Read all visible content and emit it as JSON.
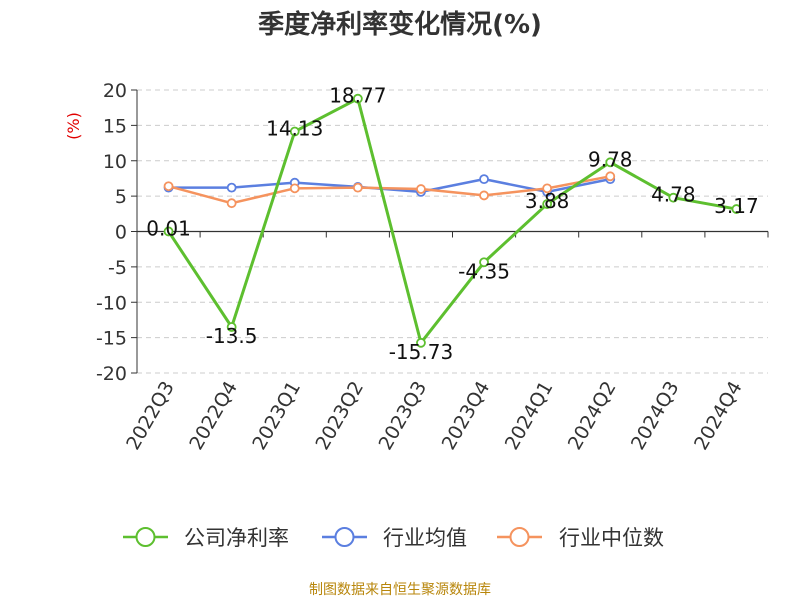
{
  "chart_data": {
    "type": "line",
    "title": "季度净利率变化情况(%)",
    "ylabel": "(%)",
    "xlabel": "",
    "ylim": [
      -20,
      20
    ],
    "yticks": [
      20,
      15,
      10,
      5,
      0,
      -5,
      -10,
      -15,
      -20
    ],
    "categories": [
      "2022Q3",
      "2022Q4",
      "2023Q1",
      "2023Q2",
      "2023Q3",
      "2023Q4",
      "2024Q1",
      "2024Q2",
      "2024Q3",
      "2024Q4"
    ],
    "grid": true,
    "legend_position": "bottom",
    "series": [
      {
        "name": "公司净利率",
        "color": "#5dbf2f",
        "values": [
          0.01,
          -13.5,
          14.13,
          18.77,
          -15.73,
          -4.35,
          3.88,
          9.78,
          4.78,
          3.17
        ],
        "labels": [
          "0.01",
          "-13.5",
          "14.13",
          "18.77",
          "-15.73",
          "-4.35",
          "3.88",
          "9.78",
          "4.78",
          "3.17"
        ]
      },
      {
        "name": "行业均值",
        "color": "#5b7fe0",
        "values": [
          6.2,
          6.2,
          6.9,
          6.3,
          5.6,
          7.4,
          5.6,
          7.4,
          null,
          null
        ]
      },
      {
        "name": "行业中位数",
        "color": "#f5935e",
        "values": [
          6.4,
          4.0,
          6.1,
          6.2,
          6.0,
          5.1,
          6.1,
          7.8,
          null,
          null
        ]
      }
    ]
  },
  "footer": {
    "source": "制图数据来自恒生聚源数据库"
  }
}
